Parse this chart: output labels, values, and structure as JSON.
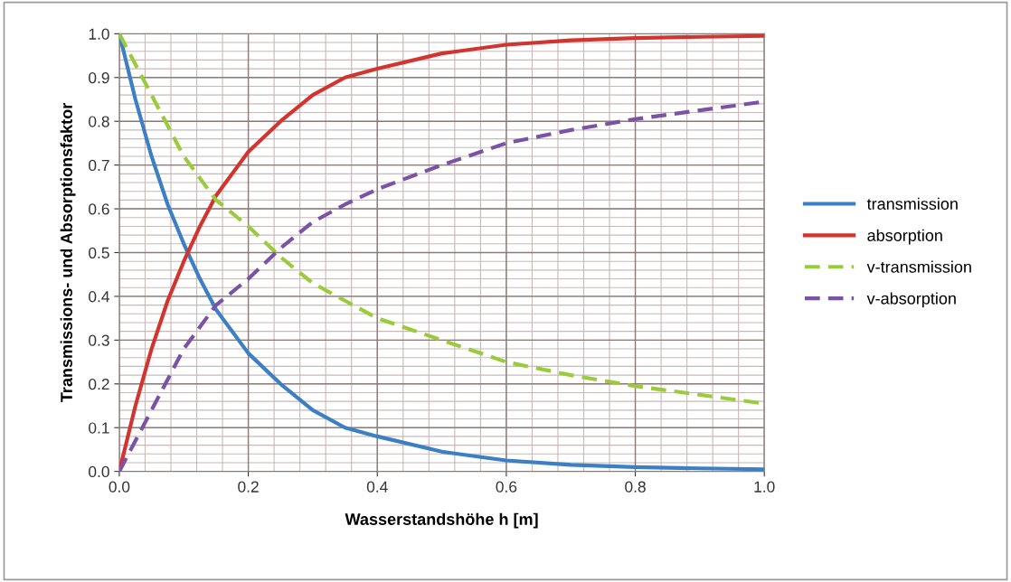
{
  "chart_data": {
    "type": "line",
    "xlabel": "Wasserstandshöhe h [m]",
    "ylabel": "Transmissions- und Absorptionsfaktor",
    "x": [
      0,
      0.025,
      0.05,
      0.075,
      0.1,
      0.125,
      0.15,
      0.2,
      0.25,
      0.3,
      0.35,
      0.4,
      0.5,
      0.6,
      0.7,
      0.8,
      0.9,
      1.0
    ],
    "series": [
      {
        "name": "transmission",
        "color": "#3b7fc4",
        "line_style": "solid",
        "values": [
          1,
          0.85,
          0.72,
          0.61,
          0.52,
          0.44,
          0.37,
          0.27,
          0.2,
          0.14,
          0.1,
          0.08,
          0.045,
          0.025,
          0.015,
          0.01,
          0.007,
          0.005
        ]
      },
      {
        "name": "absorption",
        "color": "#d2352f",
        "line_style": "solid",
        "values": [
          0,
          0.15,
          0.28,
          0.39,
          0.48,
          0.56,
          0.63,
          0.73,
          0.8,
          0.86,
          0.9,
          0.92,
          0.955,
          0.975,
          0.985,
          0.99,
          0.993,
          0.995
        ]
      },
      {
        "name": "v-transmission",
        "color": "#9acb3c",
        "line_style": "dashed",
        "values": [
          1,
          0.93,
          0.86,
          0.79,
          0.72,
          0.67,
          0.62,
          0.56,
          0.49,
          0.43,
          0.39,
          0.35,
          0.3,
          0.25,
          0.22,
          0.195,
          0.175,
          0.155
        ]
      },
      {
        "name": "v-absorption",
        "color": "#7a52a6",
        "line_style": "dashed",
        "values": [
          0,
          0.07,
          0.14,
          0.21,
          0.28,
          0.33,
          0.38,
          0.44,
          0.51,
          0.57,
          0.61,
          0.645,
          0.7,
          0.75,
          0.78,
          0.805,
          0.825,
          0.845
        ]
      }
    ],
    "xlim": [
      0,
      1.0
    ],
    "ylim": [
      0,
      1.0
    ],
    "xticks": [
      {
        "value": 0,
        "label": "0.0"
      },
      0.2,
      0.4,
      0.6,
      0.8,
      {
        "value": 1.0,
        "label": "1.0"
      }
    ],
    "yticks": [
      {
        "value": 0,
        "label": "0.0"
      },
      0.1,
      0.2,
      0.3,
      0.4,
      0.5,
      0.6,
      0.7,
      0.8,
      0.9,
      {
        "value": 1.0,
        "label": "1.0"
      }
    ],
    "grid": true,
    "legend": "right",
    "marker": "none"
  }
}
